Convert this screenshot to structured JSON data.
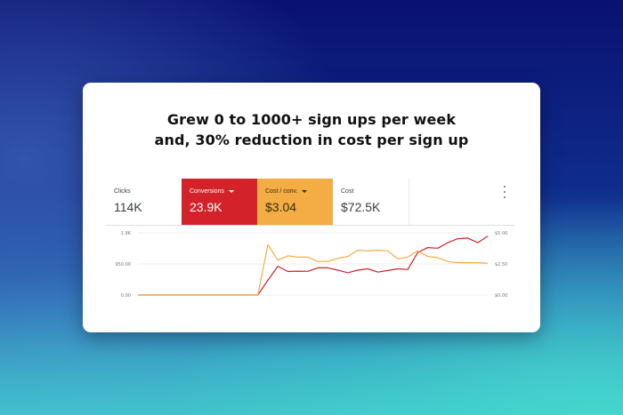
{
  "headline": {
    "line1": "Grew 0 to 1000+ sign ups per week",
    "line2": "and, 30% reduction in cost per sign up"
  },
  "metrics": [
    {
      "label": "Clicks",
      "value": "114K",
      "style": "plain",
      "dropdown": false
    },
    {
      "label": "Conversions",
      "value": "23.9K",
      "style": "red",
      "dropdown": true
    },
    {
      "label": "Cost / conv.",
      "value": "$3.04",
      "style": "amber",
      "dropdown": true
    },
    {
      "label": "Cost",
      "value": "$72.5K",
      "style": "plain",
      "dropdown": false
    }
  ],
  "menu_icon": "more-vert-icon",
  "colors": {
    "conversions": "#d3222a",
    "cost_per_conv": "#f3ad44",
    "grid": "#e6e6e6"
  },
  "chart_data": {
    "type": "line",
    "left_axis": {
      "ticks": [
        "1.9K",
        "950.00",
        "0.00"
      ],
      "range": [
        0,
        1900
      ]
    },
    "right_axis": {
      "ticks": [
        "$5.00",
        "$2.50",
        "$0.00"
      ],
      "range": [
        0,
        5
      ]
    },
    "grid": true,
    "series": [
      {
        "name": "Conversions",
        "axis": "left",
        "color": "#d3222a",
        "values": [
          0,
          0,
          0,
          0,
          0,
          0,
          0,
          0,
          0,
          0,
          0,
          0,
          0,
          450,
          880,
          720,
          730,
          725,
          830,
          830,
          760,
          680,
          760,
          800,
          700,
          750,
          800,
          780,
          1300,
          1450,
          1430,
          1600,
          1720,
          1740,
          1600,
          1800
        ]
      },
      {
        "name": "Cost / conv.",
        "axis": "right",
        "color": "#f3ad44",
        "values": [
          0,
          0,
          0,
          0,
          0,
          0,
          0,
          0,
          0,
          0,
          0,
          0,
          0,
          4.05,
          2.8,
          3.15,
          3.05,
          3.05,
          2.7,
          2.7,
          2.95,
          3.1,
          3.6,
          3.55,
          3.6,
          3.55,
          2.9,
          3.05,
          3.55,
          3.1,
          3.0,
          2.7,
          2.6,
          2.6,
          2.6,
          2.55
        ]
      }
    ]
  }
}
